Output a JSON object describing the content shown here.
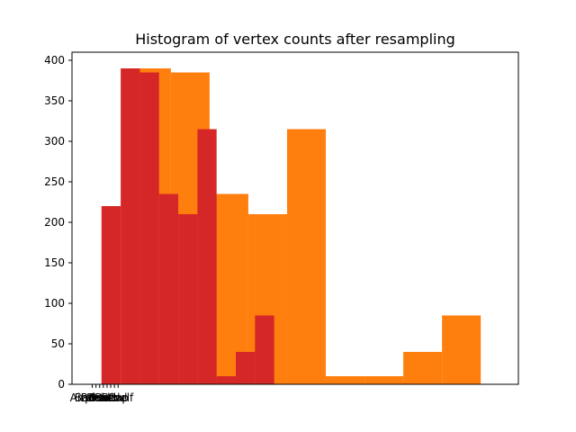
{
  "chart_data": {
    "type": "bar",
    "title": "Histogram of vertex counts after resampling",
    "xlabel": "",
    "ylabel": "",
    "ylim": [
      0,
      410
    ],
    "xlim": [
      -0.55,
      11.55
    ],
    "y_ticks": [
      0,
      50,
      100,
      150,
      200,
      250,
      300,
      350,
      400
    ],
    "x_ticks": [
      0,
      0.1,
      0.2,
      0.3,
      0.4,
      0.5,
      0.6,
      0.7
    ],
    "x_tick_labels": [
      "Airplane",
      "Bathtub",
      "Bed",
      "Bench",
      "Bookshelf",
      "Bottle",
      "Bowl",
      "Cup"
    ],
    "series": [
      {
        "color": "#ff7f0e",
        "bins": [
          {
            "x0": 1.08,
            "x1": 2.13,
            "value": 390
          },
          {
            "x0": 2.13,
            "x1": 3.18,
            "value": 385
          },
          {
            "x0": 3.18,
            "x1": 4.23,
            "value": 235
          },
          {
            "x0": 4.23,
            "x1": 5.28,
            "value": 210
          },
          {
            "x0": 5.28,
            "x1": 6.33,
            "value": 315
          },
          {
            "x0": 6.33,
            "x1": 7.38,
            "value": 10
          },
          {
            "x0": 7.38,
            "x1": 8.43,
            "value": 10
          },
          {
            "x0": 8.43,
            "x1": 9.48,
            "value": 40
          },
          {
            "x0": 9.48,
            "x1": 10.53,
            "value": 85
          }
        ]
      },
      {
        "color": "#d62728",
        "bins": [
          {
            "x0": 0.25,
            "x1": 0.77,
            "value": 220
          },
          {
            "x0": 0.77,
            "x1": 1.29,
            "value": 390
          },
          {
            "x0": 1.29,
            "x1": 1.81,
            "value": 385
          },
          {
            "x0": 1.81,
            "x1": 2.33,
            "value": 235
          },
          {
            "x0": 2.33,
            "x1": 2.85,
            "value": 210
          },
          {
            "x0": 2.85,
            "x1": 3.37,
            "value": 315
          },
          {
            "x0": 3.37,
            "x1": 3.89,
            "value": 10
          },
          {
            "x0": 3.89,
            "x1": 4.41,
            "value": 40
          },
          {
            "x0": 4.41,
            "x1": 4.93,
            "value": 85
          }
        ]
      }
    ]
  }
}
